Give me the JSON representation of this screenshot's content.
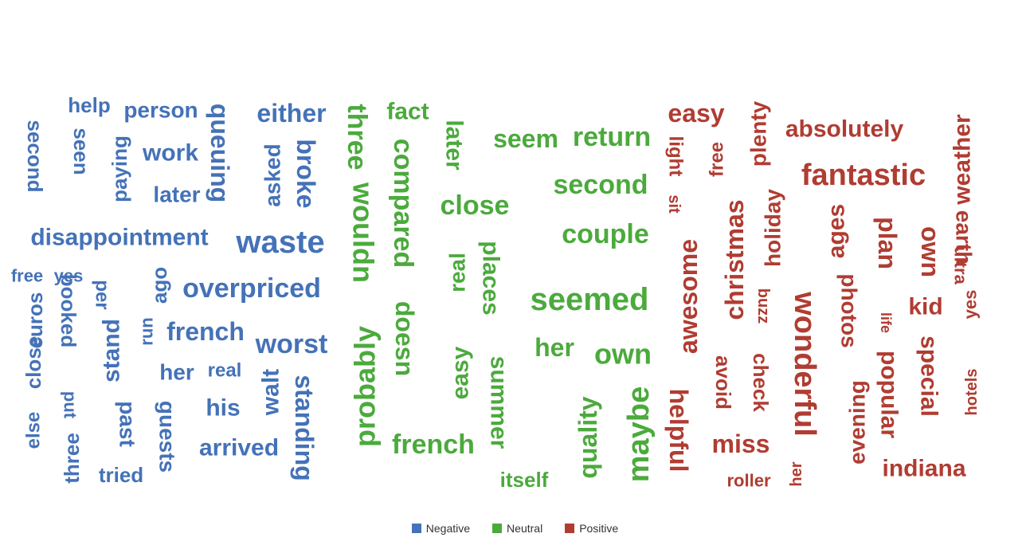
{
  "chart_data": {
    "type": "wordcloud",
    "legend": [
      {
        "name": "Negative",
        "color": "#4472B8"
      },
      {
        "name": "Neutral",
        "color": "#4BAA3C"
      },
      {
        "name": "Positive",
        "color": "#B03C32"
      }
    ],
    "words": [
      {
        "text": "second",
        "cat": "Negative",
        "size": 26,
        "rot": 90
      },
      {
        "text": "help",
        "cat": "Negative",
        "size": 26,
        "rot": 0
      },
      {
        "text": "seen",
        "cat": "Negative",
        "size": 26,
        "rot": 90
      },
      {
        "text": "paying",
        "cat": "Negative",
        "size": 26,
        "rot": -90
      },
      {
        "text": "person",
        "cat": "Negative",
        "size": 28,
        "rot": 0
      },
      {
        "text": "work",
        "cat": "Negative",
        "size": 30,
        "rot": 0
      },
      {
        "text": "later",
        "cat": "Negative",
        "size": 28,
        "rot": 0
      },
      {
        "text": "queuing",
        "cat": "Negative",
        "size": 32,
        "rot": 90
      },
      {
        "text": "either",
        "cat": "Negative",
        "size": 32,
        "rot": 0
      },
      {
        "text": "asked",
        "cat": "Negative",
        "size": 28,
        "rot": -90
      },
      {
        "text": "broke",
        "cat": "Negative",
        "size": 32,
        "rot": 90
      },
      {
        "text": "disappointment",
        "cat": "Negative",
        "size": 30,
        "rot": 0
      },
      {
        "text": "waste",
        "cat": "Negative",
        "size": 40,
        "rot": 0
      },
      {
        "text": "free",
        "cat": "Negative",
        "size": 22,
        "rot": 0
      },
      {
        "text": "yes",
        "cat": "Negative",
        "size": 22,
        "rot": 0
      },
      {
        "text": "else",
        "cat": "Negative",
        "size": 24,
        "rot": -90
      },
      {
        "text": "close",
        "cat": "Negative",
        "size": 26,
        "rot": -90
      },
      {
        "text": "euros",
        "cat": "Negative",
        "size": 26,
        "rot": -90
      },
      {
        "text": "booked",
        "cat": "Negative",
        "size": 26,
        "rot": 90
      },
      {
        "text": "put",
        "cat": "Negative",
        "size": 22,
        "rot": 90
      },
      {
        "text": "three",
        "cat": "Negative",
        "size": 26,
        "rot": -90
      },
      {
        "text": "per",
        "cat": "Negative",
        "size": 24,
        "rot": 90
      },
      {
        "text": "stand",
        "cat": "Negative",
        "size": 30,
        "rot": -90
      },
      {
        "text": "past",
        "cat": "Negative",
        "size": 28,
        "rot": 90
      },
      {
        "text": "tried",
        "cat": "Negative",
        "size": 26,
        "rot": 0
      },
      {
        "text": "ago",
        "cat": "Negative",
        "size": 26,
        "rot": -90
      },
      {
        "text": "run",
        "cat": "Negative",
        "size": 22,
        "rot": -90
      },
      {
        "text": "guests",
        "cat": "Negative",
        "size": 28,
        "rot": 90
      },
      {
        "text": "overpriced",
        "cat": "Negative",
        "size": 34,
        "rot": 0
      },
      {
        "text": "french",
        "cat": "Negative",
        "size": 32,
        "rot": 0
      },
      {
        "text": "her",
        "cat": "Negative",
        "size": 28,
        "rot": 0
      },
      {
        "text": "real",
        "cat": "Negative",
        "size": 24,
        "rot": 0
      },
      {
        "text": "his",
        "cat": "Negative",
        "size": 30,
        "rot": 0
      },
      {
        "text": "arrived",
        "cat": "Negative",
        "size": 30,
        "rot": 0
      },
      {
        "text": "worst",
        "cat": "Negative",
        "size": 34,
        "rot": 0
      },
      {
        "text": "walt",
        "cat": "Negative",
        "size": 30,
        "rot": -90
      },
      {
        "text": "standing",
        "cat": "Negative",
        "size": 32,
        "rot": 90
      },
      {
        "text": "three",
        "cat": "Neutral",
        "size": 34,
        "rot": 90
      },
      {
        "text": "probably",
        "cat": "Neutral",
        "size": 36,
        "rot": -90
      },
      {
        "text": "wouldn",
        "cat": "Neutral",
        "size": 36,
        "rot": 90
      },
      {
        "text": "fact",
        "cat": "Neutral",
        "size": 30,
        "rot": 0
      },
      {
        "text": "compared",
        "cat": "Neutral",
        "size": 34,
        "rot": 90
      },
      {
        "text": "doesn",
        "cat": "Neutral",
        "size": 32,
        "rot": 90
      },
      {
        "text": "later",
        "cat": "Neutral",
        "size": 30,
        "rot": 90
      },
      {
        "text": "close",
        "cat": "Neutral",
        "size": 34,
        "rot": 0
      },
      {
        "text": "real",
        "cat": "Neutral",
        "size": 28,
        "rot": -90
      },
      {
        "text": "easy",
        "cat": "Neutral",
        "size": 30,
        "rot": -90
      },
      {
        "text": "places",
        "cat": "Neutral",
        "size": 30,
        "rot": 90
      },
      {
        "text": "summer",
        "cat": "Neutral",
        "size": 30,
        "rot": 90
      },
      {
        "text": "french",
        "cat": "Neutral",
        "size": 34,
        "rot": 0
      },
      {
        "text": "itself",
        "cat": "Neutral",
        "size": 26,
        "rot": 0
      },
      {
        "text": "seem",
        "cat": "Neutral",
        "size": 32,
        "rot": 0
      },
      {
        "text": "return",
        "cat": "Neutral",
        "size": 34,
        "rot": 0
      },
      {
        "text": "second",
        "cat": "Neutral",
        "size": 34,
        "rot": 0
      },
      {
        "text": "couple",
        "cat": "Neutral",
        "size": 34,
        "rot": 0
      },
      {
        "text": "seemed",
        "cat": "Neutral",
        "size": 40,
        "rot": 0
      },
      {
        "text": "her",
        "cat": "Neutral",
        "size": 32,
        "rot": 0
      },
      {
        "text": "own",
        "cat": "Neutral",
        "size": 36,
        "rot": 0
      },
      {
        "text": "quality",
        "cat": "Neutral",
        "size": 32,
        "rot": -90
      },
      {
        "text": "maybe",
        "cat": "Neutral",
        "size": 38,
        "rot": -90
      },
      {
        "text": "easy",
        "cat": "Positive",
        "size": 32,
        "rot": 0
      },
      {
        "text": "light",
        "cat": "Positive",
        "size": 24,
        "rot": 90
      },
      {
        "text": "sit",
        "cat": "Positive",
        "size": 20,
        "rot": 90
      },
      {
        "text": "free",
        "cat": "Positive",
        "size": 24,
        "rot": -90
      },
      {
        "text": "plenty",
        "cat": "Positive",
        "size": 28,
        "rot": -90
      },
      {
        "text": "christmas",
        "cat": "Positive",
        "size": 32,
        "rot": -90
      },
      {
        "text": "holiday",
        "cat": "Positive",
        "size": 28,
        "rot": -90
      },
      {
        "text": "awesome",
        "cat": "Positive",
        "size": 32,
        "rot": -90
      },
      {
        "text": "buzz",
        "cat": "Positive",
        "size": 20,
        "rot": 90
      },
      {
        "text": "helpful",
        "cat": "Positive",
        "size": 32,
        "rot": 90
      },
      {
        "text": "avoid",
        "cat": "Positive",
        "size": 26,
        "rot": 90
      },
      {
        "text": "check",
        "cat": "Positive",
        "size": 26,
        "rot": 90
      },
      {
        "text": "miss",
        "cat": "Positive",
        "size": 32,
        "rot": 0
      },
      {
        "text": "roller",
        "cat": "Positive",
        "size": 22,
        "rot": 0
      },
      {
        "text": "her",
        "cat": "Positive",
        "size": 20,
        "rot": -90
      },
      {
        "text": "absolutely",
        "cat": "Positive",
        "size": 30,
        "rot": 0
      },
      {
        "text": "fantastic",
        "cat": "Positive",
        "size": 38,
        "rot": 0
      },
      {
        "text": "ages",
        "cat": "Positive",
        "size": 30,
        "rot": -90
      },
      {
        "text": "wonderful",
        "cat": "Positive",
        "size": 38,
        "rot": 90
      },
      {
        "text": "photos",
        "cat": "Positive",
        "size": 28,
        "rot": 90
      },
      {
        "text": "evening",
        "cat": "Positive",
        "size": 28,
        "rot": -90
      },
      {
        "text": "plan",
        "cat": "Positive",
        "size": 32,
        "rot": 90
      },
      {
        "text": "life",
        "cat": "Positive",
        "size": 18,
        "rot": 90
      },
      {
        "text": "popular",
        "cat": "Positive",
        "size": 30,
        "rot": 90
      },
      {
        "text": "kid",
        "cat": "Positive",
        "size": 30,
        "rot": 0
      },
      {
        "text": "special",
        "cat": "Positive",
        "size": 30,
        "rot": 90
      },
      {
        "text": "indiana",
        "cat": "Positive",
        "size": 30,
        "rot": 0
      },
      {
        "text": "own",
        "cat": "Positive",
        "size": 32,
        "rot": 90
      },
      {
        "text": "weather",
        "cat": "Positive",
        "size": 30,
        "rot": -90
      },
      {
        "text": "earth",
        "cat": "Positive",
        "size": 28,
        "rot": 90
      },
      {
        "text": "ultra",
        "cat": "Positive",
        "size": 22,
        "rot": 90
      },
      {
        "text": "yes",
        "cat": "Positive",
        "size": 22,
        "rot": -90
      },
      {
        "text": "hotels",
        "cat": "Positive",
        "size": 20,
        "rot": -90
      }
    ]
  }
}
